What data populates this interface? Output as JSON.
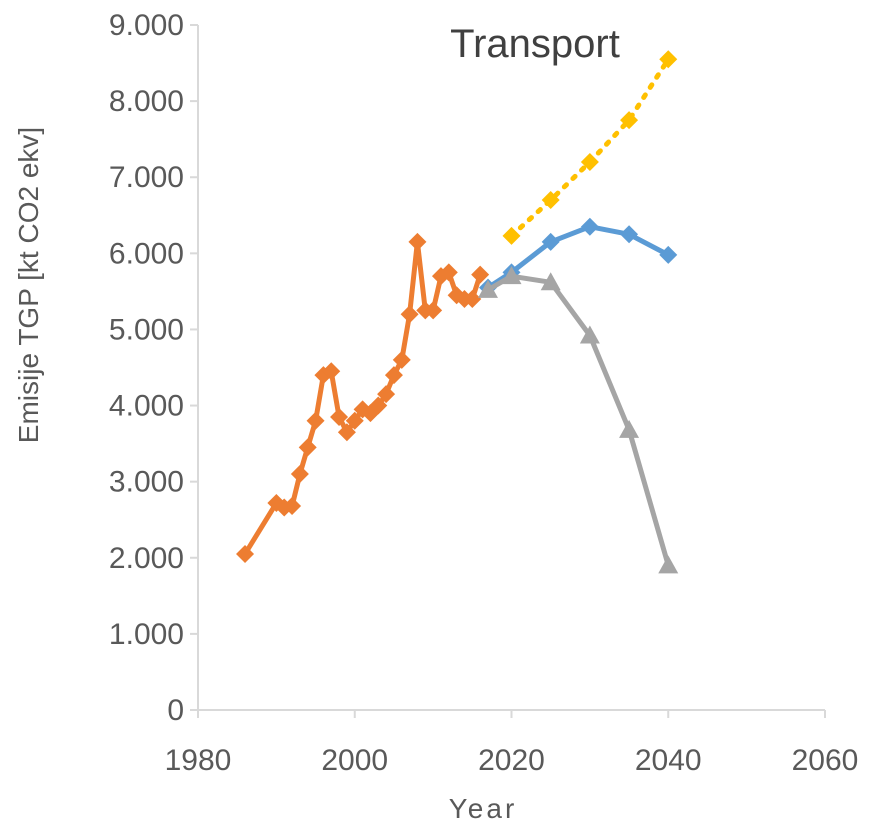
{
  "chart_data": {
    "type": "scatter",
    "title": "Transport",
    "xlabel": "Year",
    "ylabel": "Emisije TGP [kt CO2 ekv]",
    "xlim": [
      1980,
      2060
    ],
    "ylim": [
      0,
      9000
    ],
    "xticks": [
      1980,
      2000,
      2020,
      2040,
      2060
    ],
    "xtick_labels": [
      "1980",
      "2000",
      "2020",
      "2040",
      "2060"
    ],
    "yticks": [
      0,
      1000,
      2000,
      3000,
      4000,
      5000,
      6000,
      7000,
      8000,
      9000
    ],
    "ytick_labels": [
      "0",
      "1.000",
      "2.000",
      "3.000",
      "4.000",
      "5.000",
      "6.000",
      "7.000",
      "8.000",
      "9.000"
    ],
    "grid": false,
    "legend": "none",
    "series": [
      {
        "color": "#ED7D31",
        "marker": "diamond",
        "line": "solid",
        "x": [
          1986,
          1990,
          1991,
          1992,
          1993,
          1994,
          1995,
          1996,
          1997,
          1998,
          1999,
          2000,
          2001,
          2002,
          2003,
          2004,
          2005,
          2006,
          2007,
          2008,
          2009,
          2010,
          2011,
          2012,
          2013,
          2014,
          2015,
          2016
        ],
        "y": [
          2050,
          2720,
          2660,
          2680,
          3100,
          3450,
          3800,
          4400,
          4450,
          3850,
          3650,
          3800,
          3950,
          3900,
          4000,
          4150,
          4400,
          4600,
          5200,
          6150,
          5250,
          5250,
          5700,
          5750,
          5450,
          5400,
          5400,
          5720
        ]
      },
      {
        "color": "#FFC000",
        "marker": "diamond",
        "line": "dotted",
        "x": [
          2020,
          2025,
          2030,
          2035,
          2040
        ],
        "y": [
          6230,
          6700,
          7200,
          7750,
          8550
        ]
      },
      {
        "color": "#5B9BD5",
        "marker": "diamond",
        "line": "solid",
        "x": [
          2017,
          2020,
          2025,
          2030,
          2035,
          2040
        ],
        "y": [
          5550,
          5750,
          6150,
          6350,
          6250,
          5980
        ]
      },
      {
        "color": "#A5A5A5",
        "marker": "triangle",
        "line": "solid",
        "x": [
          2017,
          2020,
          2025,
          2030,
          2035,
          2040
        ],
        "y": [
          5520,
          5700,
          5620,
          4920,
          3680,
          1900
        ]
      }
    ]
  }
}
